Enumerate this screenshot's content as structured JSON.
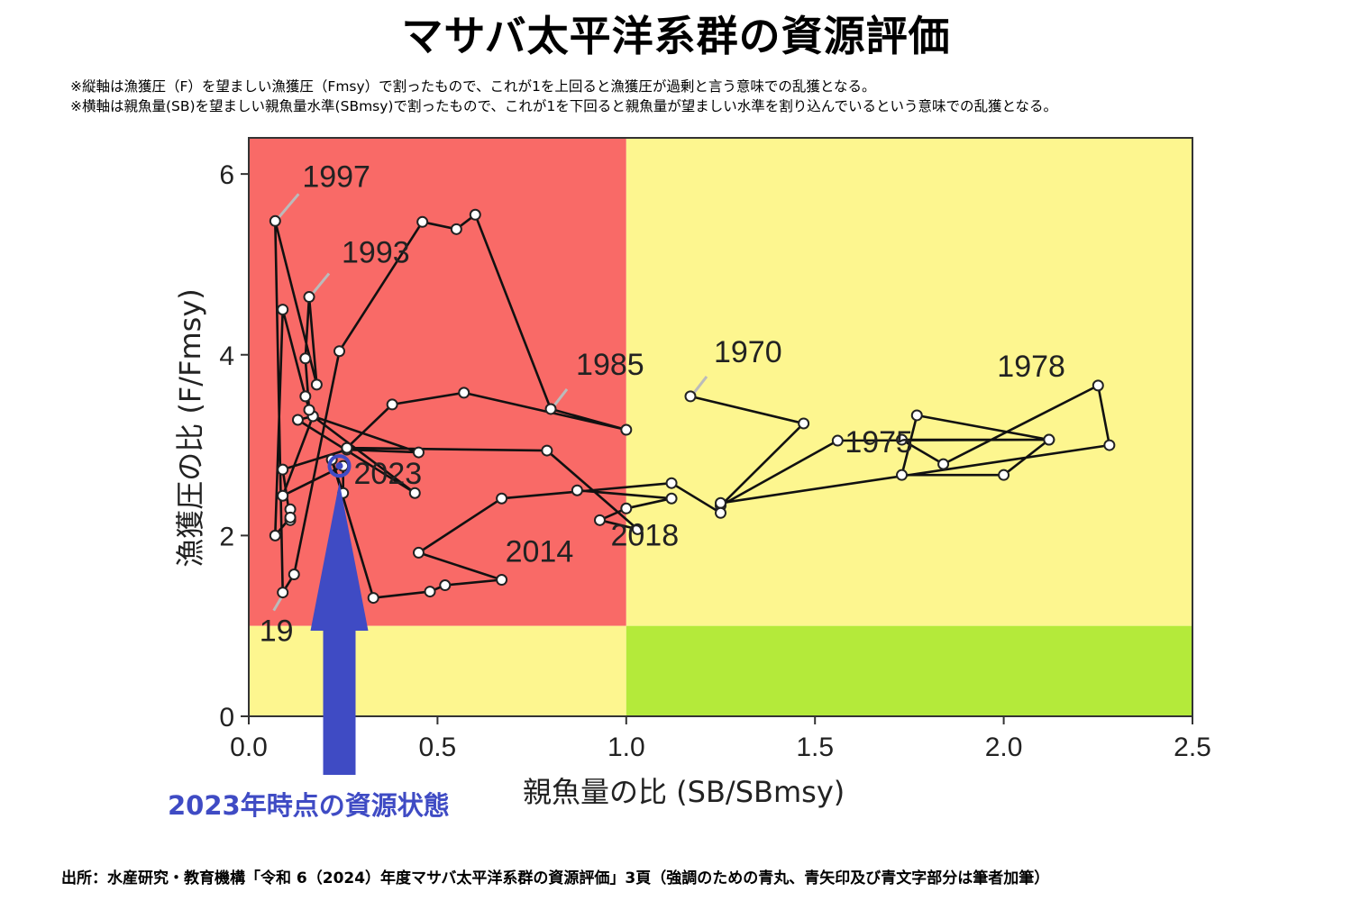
{
  "header": {
    "title": "マサバ太平洋系群の資源評価",
    "note1": "※縦軸は漁獲圧（F）を望ましい漁獲圧（Fmsy）で割ったもので、これが1を上回ると漁獲圧が過剰と言う意味での乱獲となる。",
    "note2": "※横軸は親魚量(SB)を望ましい親魚量水準(SBmsy)で割ったもので、これが1を下回ると親魚量が望ましい水準を割り込んでいるという意味での乱獲となる。"
  },
  "footer": {
    "source": "出所：水産研究・教育機構「令和 6（2024）年度マサバ太平洋系群の資源評価」3頁（強調のための青丸、青矢印及び青文字部分は筆者加筆）"
  },
  "colors": {
    "overfished_zone": "#f96a67",
    "caution_zone": "#fdf68f",
    "healthy_zone": "#b4ea3a",
    "trajectory": "#111111",
    "highlight": "#3f4bc4"
  },
  "chart_data": {
    "type": "scatter",
    "xlabel": "親魚量の比 (SB/SBmsy)",
    "ylabel": "漁獲圧の比 (F/Fmsy)",
    "xlim": [
      0,
      2.5
    ],
    "ylim": [
      0,
      6.4
    ],
    "x_ticks": [
      0.0,
      0.5,
      1.0,
      1.5,
      2.0,
      2.5
    ],
    "x_tick_labels": [
      "0.0",
      "0.5",
      "1.0",
      "1.5",
      "2.0",
      "2.5"
    ],
    "y_ticks": [
      0,
      2,
      4,
      6
    ],
    "y_tick_labels": [
      "0",
      "2",
      "4",
      "6"
    ],
    "zones": [
      {
        "x": [
          0,
          1
        ],
        "y": [
          1,
          6.4
        ],
        "color": "#f96a67"
      },
      {
        "x": [
          1,
          2.5
        ],
        "y": [
          1,
          6.4
        ],
        "color": "#fdf68f"
      },
      {
        "x": [
          0,
          1
        ],
        "y": [
          0,
          1
        ],
        "color": "#fdf68f"
      },
      {
        "x": [
          1,
          2.5
        ],
        "y": [
          0,
          1
        ],
        "color": "#b4ea3a"
      }
    ],
    "trajectory": [
      [
        1.17,
        3.54
      ],
      [
        1.47,
        3.24
      ],
      [
        1.25,
        2.33
      ],
      [
        1.56,
        3.05
      ],
      [
        2.12,
        3.06
      ],
      [
        1.77,
        3.33
      ],
      [
        1.73,
        2.67
      ],
      [
        2.0,
        2.67
      ],
      [
        2.12,
        3.06
      ],
      [
        1.73,
        3.06
      ],
      [
        1.84,
        2.79
      ],
      [
        2.25,
        3.66
      ],
      [
        2.28,
        3.0
      ],
      [
        1.25,
        2.36
      ],
      [
        1.25,
        2.25
      ],
      [
        1.12,
        2.58
      ],
      [
        0.67,
        2.41
      ],
      [
        0.45,
        1.81
      ],
      [
        0.67,
        1.51
      ],
      [
        0.52,
        1.45
      ],
      [
        0.48,
        1.38
      ],
      [
        0.33,
        1.31
      ],
      [
        0.22,
        2.84
      ],
      [
        0.25,
        2.47
      ],
      [
        0.25,
        2.77
      ],
      [
        0.09,
        2.44
      ],
      [
        0.17,
        3.32
      ],
      [
        0.13,
        3.28
      ],
      [
        0.44,
        2.47
      ],
      [
        0.17,
        3.32
      ],
      [
        0.45,
        2.92
      ],
      [
        0.26,
        2.95
      ],
      [
        0.09,
        2.73
      ],
      [
        0.11,
        2.17
      ],
      [
        0.11,
        2.29
      ],
      [
        0.11,
        2.2
      ],
      [
        0.07,
        2.0
      ],
      [
        0.09,
        4.5
      ],
      [
        0.15,
        3.54
      ],
      [
        0.16,
        3.39
      ],
      [
        0.15,
        3.96
      ],
      [
        0.16,
        4.64
      ],
      [
        0.18,
        3.67
      ],
      [
        0.07,
        5.48
      ],
      [
        0.09,
        1.37
      ],
      [
        0.12,
        1.57
      ],
      [
        0.24,
        4.04
      ],
      [
        0.46,
        5.47
      ],
      [
        0.55,
        5.39
      ],
      [
        0.6,
        5.55
      ],
      [
        0.8,
        3.4
      ],
      [
        1.0,
        3.17
      ],
      [
        0.57,
        3.58
      ],
      [
        0.38,
        3.45
      ],
      [
        0.26,
        2.97
      ],
      [
        0.79,
        2.94
      ],
      [
        1.03,
        2.07
      ],
      [
        0.93,
        2.17
      ],
      [
        1.0,
        2.3
      ],
      [
        1.12,
        2.41
      ],
      [
        0.87,
        2.5
      ]
    ],
    "year_labels": [
      {
        "text": "1997",
        "x": 0.07,
        "y": 5.48
      },
      {
        "text": "1993",
        "x": 0.16,
        "y": 4.64
      },
      {
        "text": "1985",
        "x": 0.8,
        "y": 3.4
      },
      {
        "text": "1970",
        "x": 1.17,
        "y": 3.54
      },
      {
        "text": "1978",
        "x": 2.25,
        "y": 3.66
      },
      {
        "text": "1975",
        "x": 1.56,
        "y": 3.05
      },
      {
        "text": "2023",
        "x": 0.24,
        "y": 2.77
      },
      {
        "text": "2018",
        "x": 0.93,
        "y": 2.17
      },
      {
        "text": "2014",
        "x": 0.67,
        "y": 1.51
      },
      {
        "text": "19",
        "x": 0.09,
        "y": 1.37
      }
    ],
    "highlight": {
      "year": "2023",
      "x": 0.24,
      "y": 2.77,
      "label": "2023年時点の資源状態"
    }
  }
}
